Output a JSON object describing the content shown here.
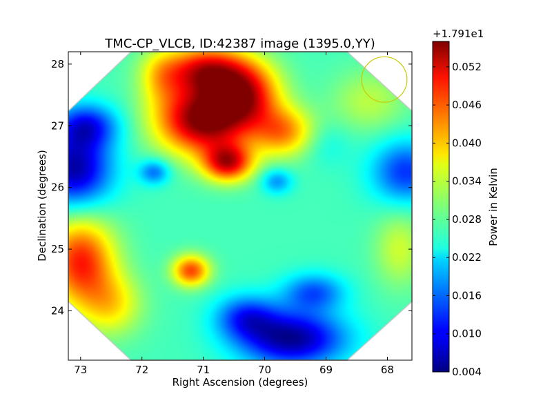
{
  "chart_data": {
    "type": "heatmap",
    "title": "TMC-CP_VLCB, ID:42387 image (1395.0,YY)",
    "xlabel": "Right Ascension (degrees)",
    "ylabel": "Declination (degrees)",
    "xlim": [
      73.2,
      67.6
    ],
    "ylim": [
      23.2,
      28.2
    ],
    "x_ticks": [
      73,
      72,
      71,
      70,
      69,
      68
    ],
    "y_ticks": [
      24,
      25,
      26,
      27,
      28
    ],
    "x_reversed": true,
    "colormap": "jet",
    "colorbar": {
      "label": "Power in Kelvin",
      "offset_text": "+1.791e1",
      "range": [
        0.004,
        0.056
      ],
      "ticks": [
        "0.004",
        "0.010",
        "0.016",
        "0.022",
        "0.028",
        "0.034",
        "0.040",
        "0.046",
        "0.052"
      ]
    },
    "background_level": 0.027,
    "features": [
      {
        "ra": 71.0,
        "dec": 27.1,
        "value": 0.057,
        "width": 0.75,
        "height": 0.55
      },
      {
        "ra": 70.95,
        "dec": 27.9,
        "value": 0.05,
        "width": 0.7,
        "height": 0.4
      },
      {
        "ra": 70.3,
        "dec": 27.5,
        "value": 0.047,
        "width": 0.55,
        "height": 0.5
      },
      {
        "ra": 70.6,
        "dec": 26.4,
        "value": 0.05,
        "width": 0.4,
        "height": 0.3
      },
      {
        "ra": 69.7,
        "dec": 26.9,
        "value": 0.042,
        "width": 0.5,
        "height": 0.4
      },
      {
        "ra": 73.1,
        "dec": 26.3,
        "value": 0.006,
        "width": 0.6,
        "height": 0.6
      },
      {
        "ra": 72.9,
        "dec": 27.0,
        "value": 0.012,
        "width": 0.5,
        "height": 0.35
      },
      {
        "ra": 71.8,
        "dec": 26.25,
        "value": 0.016,
        "width": 0.25,
        "height": 0.2
      },
      {
        "ra": 69.8,
        "dec": 26.1,
        "value": 0.018,
        "width": 0.25,
        "height": 0.2
      },
      {
        "ra": 67.7,
        "dec": 26.25,
        "value": 0.013,
        "width": 0.55,
        "height": 0.5
      },
      {
        "ra": 73.0,
        "dec": 24.8,
        "value": 0.048,
        "width": 0.55,
        "height": 0.7
      },
      {
        "ra": 71.2,
        "dec": 24.65,
        "value": 0.046,
        "width": 0.3,
        "height": 0.25
      },
      {
        "ra": 69.55,
        "dec": 23.55,
        "value": 0.005,
        "width": 0.85,
        "height": 0.45
      },
      {
        "ra": 70.3,
        "dec": 23.9,
        "value": 0.014,
        "width": 0.5,
        "height": 0.35
      },
      {
        "ra": 69.2,
        "dec": 24.3,
        "value": 0.015,
        "width": 0.5,
        "height": 0.3
      },
      {
        "ra": 67.8,
        "dec": 25.0,
        "value": 0.034,
        "width": 0.4,
        "height": 0.6
      },
      {
        "ra": 72.5,
        "dec": 24.1,
        "value": 0.037,
        "width": 0.5,
        "height": 0.5
      },
      {
        "ra": 68.3,
        "dec": 27.4,
        "value": 0.033,
        "width": 0.6,
        "height": 0.5
      },
      {
        "ra": 69.0,
        "dec": 26.7,
        "value": 0.024,
        "width": 0.4,
        "height": 0.35
      },
      {
        "ra": 71.7,
        "dec": 27.8,
        "value": 0.034,
        "width": 0.35,
        "height": 0.45
      }
    ],
    "beam_circle": {
      "ra": 68.05,
      "dec": 27.75,
      "radius_deg": 0.37,
      "color": "#c8c800"
    }
  }
}
